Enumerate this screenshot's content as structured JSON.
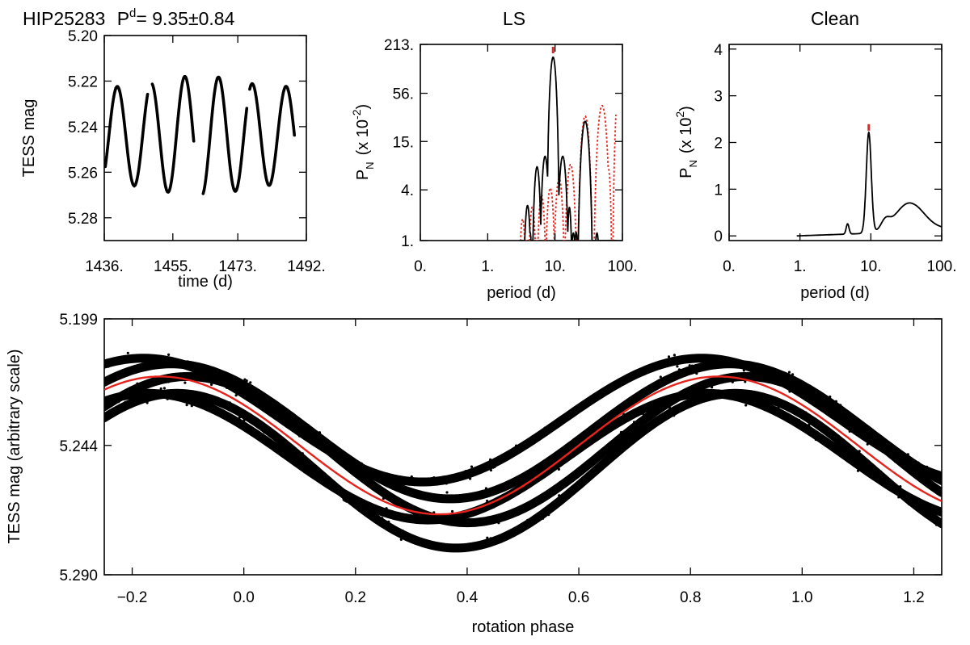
{
  "header": {
    "star": "HIP25283",
    "period_symbol": "P",
    "period_sup": "d",
    "period_value": "= 9.35±0.84"
  },
  "colors": {
    "data": "#000000",
    "fit": "#e8231c"
  },
  "chart_data": [
    {
      "id": "lightcurve",
      "type": "scatter",
      "title": "",
      "xlabel": "time (d)",
      "ylabel": "TESS mag",
      "xlim": [
        1436,
        1492
      ],
      "ylim": [
        5.29,
        5.2
      ],
      "y_inverted": true,
      "x_ticks": [
        "1436.",
        "1455.",
        "1473.",
        "1492."
      ],
      "x_tick_values": [
        1436,
        1455,
        1473,
        1492
      ],
      "y_ticks": [
        "5.20",
        "5.22",
        "5.24",
        "5.26",
        "5.28"
      ],
      "y_tick_values": [
        5.2,
        5.22,
        5.24,
        5.26,
        5.28
      ],
      "model": {
        "period": 9.35,
        "mean": 5.244,
        "amplitude": 0.024,
        "phase0": 1429.6
      },
      "segments": [
        {
          "start": 1436.3,
          "end": 1448.0
        },
        {
          "start": 1449.3,
          "end": 1460.8
        },
        {
          "start": 1463.4,
          "end": 1475.5
        },
        {
          "start": 1476.3,
          "end": 1488.7
        }
      ]
    },
    {
      "id": "ls",
      "type": "line",
      "title": "LS",
      "xlabel": "period (d)",
      "ylabel": "P",
      "ylabel_sub": "N",
      "ylabel_unit": "(x 10",
      "ylabel_exp": "-2",
      "x_scale": "log",
      "y_scale": "log",
      "xlim": [
        0.1,
        100
      ],
      "ylim": [
        1,
        213
      ],
      "x_ticks": [
        "0.",
        "1.",
        "10.",
        "100."
      ],
      "x_tick_values": [
        0.1,
        1,
        10,
        100
      ],
      "y_ticks": [
        "1.",
        "4.",
        "15.",
        "56.",
        "213."
      ],
      "y_tick_values": [
        1,
        4,
        15,
        56,
        213
      ],
      "peak_period": 9.35,
      "peaks": [
        {
          "period": 3.9,
          "value": 2.6
        },
        {
          "period": 5.4,
          "value": 7.5
        },
        {
          "period": 7.1,
          "value": 10
        },
        {
          "period": 9.35,
          "value": 150
        },
        {
          "period": 13.0,
          "value": 10
        },
        {
          "period": 28,
          "value": 26
        }
      ],
      "window_peaks": [
        {
          "period": 3.3,
          "value": 1.8
        },
        {
          "period": 4.6,
          "value": 2.5
        },
        {
          "period": 6.3,
          "value": 3.5
        },
        {
          "period": 8.5,
          "value": 4.2
        },
        {
          "period": 11.5,
          "value": 5.5
        },
        {
          "period": 17,
          "value": 8
        },
        {
          "period": 28,
          "value": 30
        },
        {
          "period": 50,
          "value": 40
        },
        {
          "period": 100,
          "value": 160
        }
      ]
    },
    {
      "id": "clean",
      "type": "line",
      "title": "Clean",
      "xlabel": "period (d)",
      "ylabel": "P",
      "ylabel_sub": "N",
      "ylabel_unit": "(x 10",
      "ylabel_exp": "2",
      "x_scale": "log",
      "xlim": [
        0.1,
        100
      ],
      "ylim": [
        -0.1,
        4.1
      ],
      "x_ticks": [
        "0.",
        "1.",
        "10.",
        "100."
      ],
      "x_tick_values": [
        0.1,
        1,
        10,
        100
      ],
      "y_ticks": [
        "0",
        "1",
        "2",
        "3",
        "4"
      ],
      "y_tick_values": [
        0,
        1,
        2,
        3,
        4
      ],
      "peak_period": 9.35,
      "components": [
        {
          "period": 9.35,
          "value": 2.15,
          "width": 0.035
        },
        {
          "period": 35,
          "value": 0.62,
          "width": 0.2
        },
        {
          "period": 16,
          "value": 0.18,
          "width": 0.06
        },
        {
          "period": 4.7,
          "value": 0.22,
          "width": 0.02
        }
      ],
      "baseline": 0.04
    },
    {
      "id": "phased",
      "type": "scatter",
      "title": "",
      "xlabel": "rotation phase",
      "ylabel": "TESS mag (arbitrary scale)",
      "xlim": [
        -0.25,
        1.25
      ],
      "ylim": [
        5.29,
        5.199
      ],
      "y_inverted": true,
      "x_ticks": [
        "−0.2",
        "0.0",
        "0.2",
        "0.4",
        "0.6",
        "0.8",
        "1.0",
        "1.2"
      ],
      "x_tick_values": [
        -0.2,
        0.0,
        0.2,
        0.4,
        0.6,
        0.8,
        1.0,
        1.2
      ],
      "y_ticks": [
        "5.199",
        "5.244",
        "5.290"
      ],
      "y_tick_values": [
        5.199,
        5.244,
        5.29
      ],
      "fit": {
        "mean": 5.244,
        "amplitude": 0.0245,
        "phase_of_max": -0.15
      },
      "tracks": [
        {
          "offset": 0.004,
          "amplitude": 0.0225,
          "phase_of_max": -0.17
        },
        {
          "offset": -0.005,
          "amplitude": 0.024,
          "phase_of_max": -0.13
        },
        {
          "offset": 0.0015,
          "amplitude": 0.026,
          "phase_of_max": -0.1
        },
        {
          "offset": 0.009,
          "amplitude": 0.0275,
          "phase_of_max": -0.12
        },
        {
          "offset": -0.009,
          "amplitude": 0.022,
          "phase_of_max": -0.18
        }
      ]
    }
  ]
}
